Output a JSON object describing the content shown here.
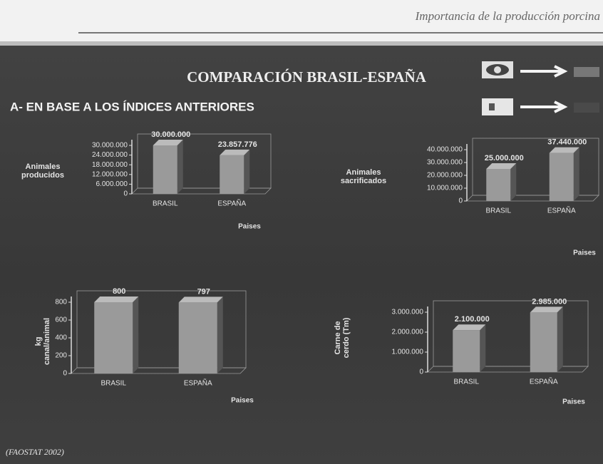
{
  "header": "Importancia de la producción porcina",
  "title": "COMPARACIÓN BRASIL-ESPAÑA",
  "subtitle": "A- EN BASE A LOS ÍNDICES ANTERIORES",
  "source": "(FAOSTAT 2002)",
  "chart_data": [
    {
      "type": "bar",
      "ylabel": "Animales producidos",
      "xlabel": "Paises",
      "categories": [
        "BRASIL",
        "ESPAÑA"
      ],
      "values": [
        30000000,
        23857776
      ],
      "value_labels": [
        "30.000.000",
        "23.857.776"
      ],
      "ylim": [
        0,
        30000000
      ],
      "yticks": [
        0,
        {
          "value": 6000000,
          "label": "6.000.000"
        },
        {
          "value": 12000000,
          "label": "12.000.000"
        },
        {
          "value": 18000000,
          "label": "18.000.000"
        },
        {
          "value": 24000000,
          "label": "24.000.000"
        },
        {
          "value": 30000000,
          "label": "30.000.000"
        }
      ],
      "color": "#9a9a9a"
    },
    {
      "type": "bar",
      "ylabel": "Animales sacrificados",
      "xlabel": "Paises",
      "categories": [
        "BRASIL",
        "ESPAÑA"
      ],
      "values": [
        25000000,
        37440000
      ],
      "value_labels": [
        "25.000.000",
        "37.440.000"
      ],
      "ylim": [
        0,
        40000000
      ],
      "yticks": [
        0,
        {
          "value": 10000000,
          "label": "10.000.000"
        },
        {
          "value": 20000000,
          "label": "20.000.000"
        },
        {
          "value": 30000000,
          "label": "30.000.000"
        },
        {
          "value": 40000000,
          "label": "40.000.000"
        }
      ],
      "color": "#9a9a9a"
    },
    {
      "type": "bar",
      "ylabel": "kg canal/animal",
      "xlabel": "Paises",
      "categories": [
        "BRASIL",
        "ESPAÑA"
      ],
      "values": [
        800,
        797
      ],
      "ylim": [
        0,
        800
      ],
      "yticks": [
        0,
        200,
        400,
        600,
        800
      ],
      "color": "#9a9a9a"
    },
    {
      "type": "bar",
      "ylabel": "Carne de cerdo (Tm)",
      "xlabel": "Paises",
      "categories": [
        "BRASIL",
        "ESPAÑA"
      ],
      "values": [
        2100000,
        2985000
      ],
      "value_labels": [
        "2.100.000",
        "2.985.000"
      ],
      "ylim": [
        0,
        3000000
      ],
      "yticks": [
        0,
        {
          "value": 1000000,
          "label": "1.000.000"
        },
        {
          "value": 2000000,
          "label": "2.000.000"
        },
        {
          "value": 3000000,
          "label": "3.000.000"
        }
      ],
      "color": "#9a9a9a"
    }
  ]
}
